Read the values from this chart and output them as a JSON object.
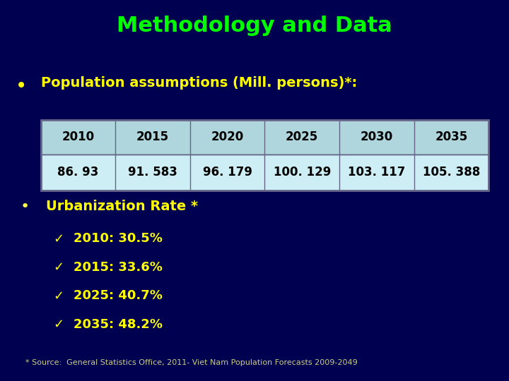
{
  "title": "Methodology and Data",
  "title_color": "#00ff00",
  "background_color": "#000050",
  "bullet1_text": "Population assumptions (Mill. persons)*:",
  "bullet1_color": "#ffff00",
  "bullet1_dot_color": "#ffff00",
  "table_years": [
    "2010",
    "2015",
    "2020",
    "2025",
    "2030",
    "2035"
  ],
  "table_values": [
    "86. 93",
    "91. 583",
    "96. 179",
    "100. 129",
    "103. 117",
    "105. 388"
  ],
  "table_header_bg": "#aed6dc",
  "table_value_bg": "#cceef4",
  "table_text_color": "#000000",
  "table_border_color": "#666688",
  "bullet2_text": "Urbanization Rate *",
  "bullet2_color": "#ffff00",
  "bullet2_dot_color": "#ffff44",
  "urb_items": [
    "2010: 30.5%",
    "2015: 33.6%",
    "2025: 40.7%",
    "2035: 48.2%"
  ],
  "urb_color": "#ffff00",
  "checkmark": "✓",
  "source_text": "* Source:  General Statistics Office, 2011- Viet Nam Population Forecasts 2009-2049",
  "source_color": "#cccc88"
}
